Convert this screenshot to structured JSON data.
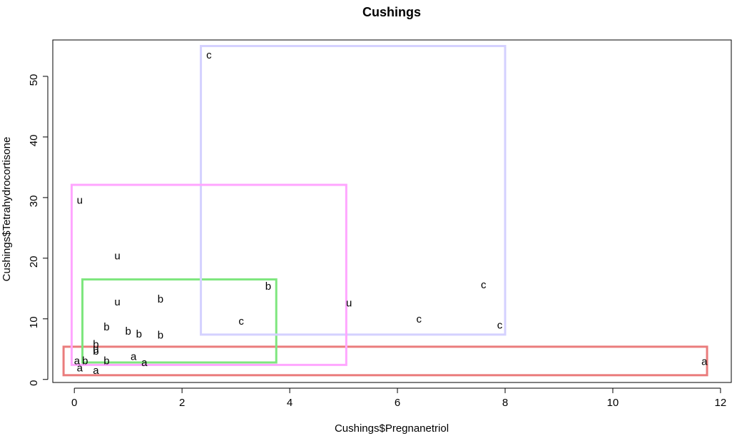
{
  "chart_data": {
    "type": "scatter",
    "title": "Cushings",
    "xlabel": "Cushings$Pregnanetriol",
    "ylabel": "Cushings$Tetrahydrocortisone",
    "xlim": [
      -0.4,
      12.2
    ],
    "ylim": [
      -0.5,
      56
    ],
    "xticks": [
      0,
      2,
      4,
      6,
      8,
      10,
      12
    ],
    "yticks": [
      0,
      10,
      20,
      30,
      40,
      50
    ],
    "points": [
      {
        "x": 0.05,
        "y": 3.1,
        "label": "a"
      },
      {
        "x": 0.1,
        "y": 1.9,
        "label": "a"
      },
      {
        "x": 0.4,
        "y": 1.5,
        "label": "a"
      },
      {
        "x": 1.1,
        "y": 3.8,
        "label": "a"
      },
      {
        "x": 1.3,
        "y": 2.8,
        "label": "a"
      },
      {
        "x": 11.7,
        "y": 3.0,
        "label": "a"
      },
      {
        "x": 0.2,
        "y": 3.1,
        "label": "b"
      },
      {
        "x": 0.4,
        "y": 5.8,
        "label": "b"
      },
      {
        "x": 0.4,
        "y": 4.7,
        "label": "b"
      },
      {
        "x": 0.6,
        "y": 3.1,
        "label": "b"
      },
      {
        "x": 0.6,
        "y": 8.7,
        "label": "b"
      },
      {
        "x": 1.0,
        "y": 8.0,
        "label": "b"
      },
      {
        "x": 1.2,
        "y": 7.5,
        "label": "b"
      },
      {
        "x": 1.6,
        "y": 13.3,
        "label": "b"
      },
      {
        "x": 1.6,
        "y": 7.3,
        "label": "b"
      },
      {
        "x": 3.6,
        "y": 15.4,
        "label": "b"
      },
      {
        "x": 2.5,
        "y": 53.5,
        "label": "c"
      },
      {
        "x": 3.1,
        "y": 9.6,
        "label": "c"
      },
      {
        "x": 6.4,
        "y": 10.0,
        "label": "c"
      },
      {
        "x": 7.6,
        "y": 15.6,
        "label": "c"
      },
      {
        "x": 7.9,
        "y": 9.0,
        "label": "c"
      },
      {
        "x": 0.1,
        "y": 29.6,
        "label": "u"
      },
      {
        "x": 0.8,
        "y": 20.4,
        "label": "u"
      },
      {
        "x": 0.8,
        "y": 12.8,
        "label": "u"
      },
      {
        "x": 0.4,
        "y": 5.0,
        "label": "u"
      },
      {
        "x": 5.1,
        "y": 12.6,
        "label": "u"
      }
    ],
    "groups": [
      {
        "label": "a",
        "color": "#ea7c7c",
        "xmin": -0.2,
        "xmax": 11.75,
        "ymin": 0.7,
        "ymax": 5.4
      },
      {
        "label": "b",
        "color": "#7ee67e",
        "xmin": 0.15,
        "xmax": 3.75,
        "ymin": 2.8,
        "ymax": 16.5
      },
      {
        "label": "c",
        "color": "#d4d1ff",
        "xmin": 2.35,
        "xmax": 8.0,
        "ymin": 7.4,
        "ymax": 55.0
      },
      {
        "label": "u",
        "color": "#ffa6ff",
        "xmin": -0.05,
        "xmax": 5.05,
        "ymin": 2.4,
        "ymax": 32.1
      }
    ],
    "grid": false
  }
}
